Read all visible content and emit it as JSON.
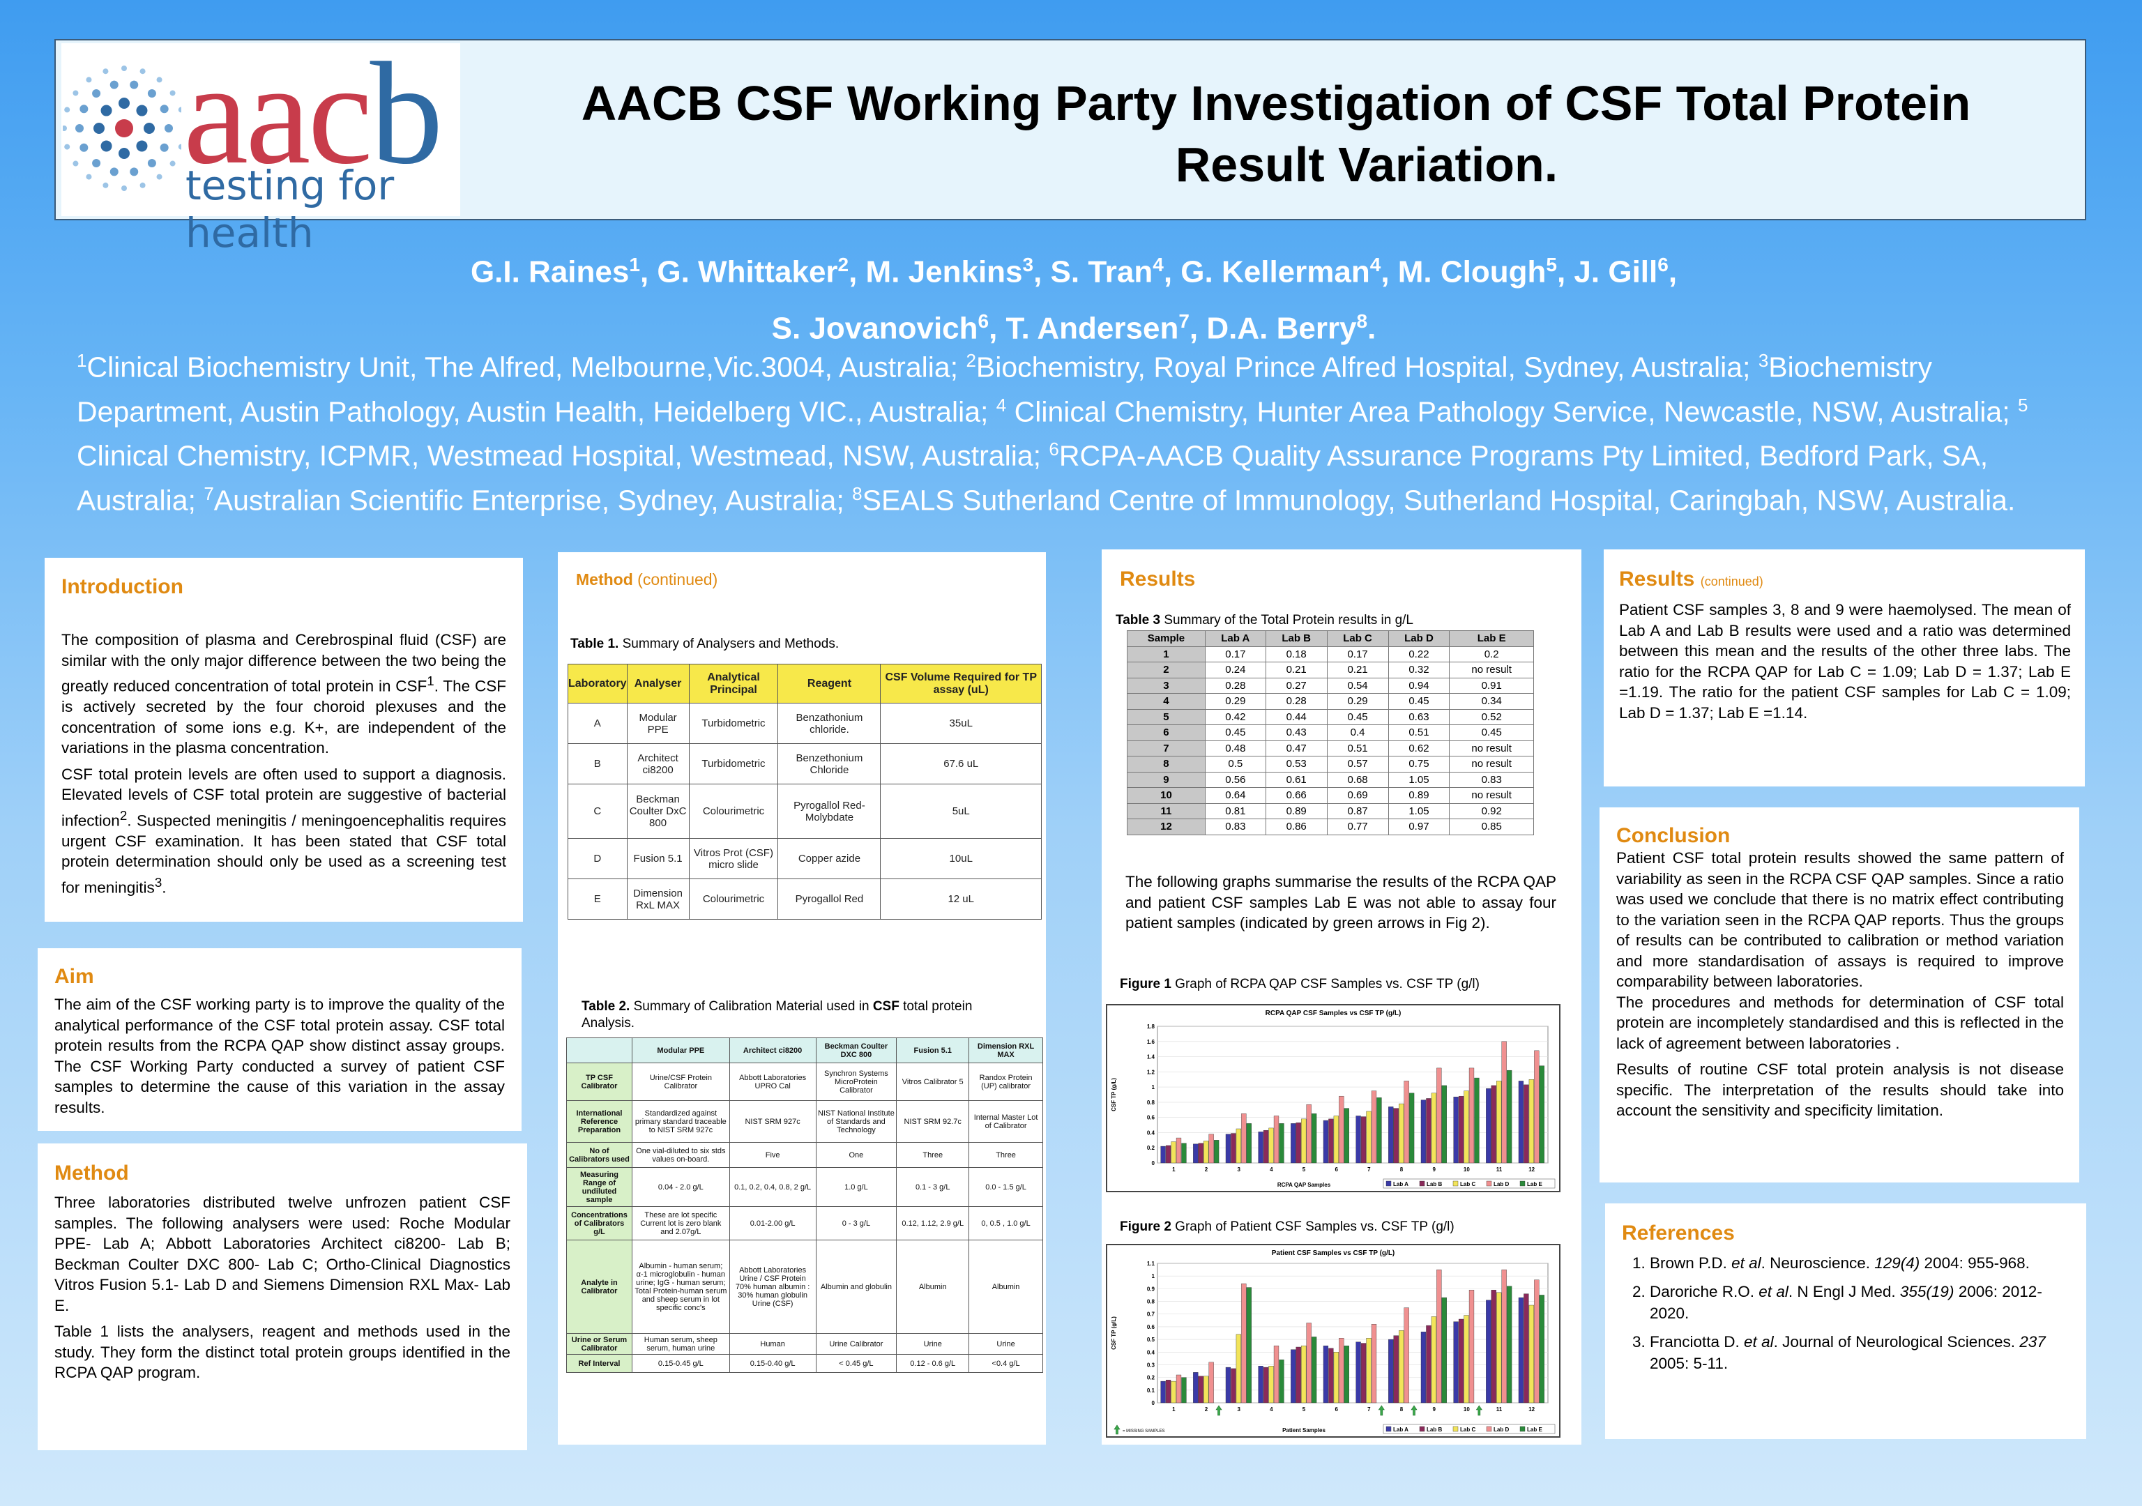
{
  "header": {
    "logo_text_a": "aac",
    "logo_text_b": "b",
    "logo_tagline": "testing for health",
    "title_line1": "AACB CSF Working Party Investigation of CSF Total Protein",
    "title_line2": "Result Variation."
  },
  "authors_html": "G.I. Raines<sup>1</sup>, G. Whittaker<sup>2</sup>, M. Jenkins<sup>3</sup>, S. Tran<sup>4</sup>, G. Kellerman<sup>4</sup>, M. Clough<sup>5</sup>, J. Gill<sup>6</sup>,<br>S. Jovanovich<sup>6</sup>, T. Andersen<sup>7</sup>, D.A. Berry<sup>8</sup>.",
  "affiliations_html": "<sup>1</sup>Clinical Biochemistry Unit, The Alfred, Melbourne,Vic.3004, Australia; <sup>2</sup>Biochemistry, Royal Prince Alfred Hospital, Sydney, Australia; <sup>3</sup>Biochemistry Department, Austin Pathology, Austin Health, Heidelberg VIC., Australia; <sup>4</sup> Clinical Chemistry, Hunter Area Pathology Service, Newcastle, NSW, Australia; <sup>5</sup> Clinical Chemistry, ICPMR, Westmead Hospital, Westmead, NSW, Australia; <sup>6</sup>RCPA-AACB Quality Assurance Programs Pty Limited, Bedford Park, SA, Australia; <sup>7</sup>Australian Scientific Enterprise, Sydney, Australia; <sup>8</sup>SEALS Sutherland Centre of Immunology, Sutherland Hospital, Caringbah, NSW, Australia.",
  "introduction": {
    "heading": "Introduction",
    "p1_html": "The composition of plasma and Cerebrospinal fluid (CSF) are similar with the only major difference between the two being the greatly reduced concentration of total protein in CSF<sup>1</sup>. The CSF is actively secreted by the four choroid plexuses and the concentration of some ions e.g. K+, are independent of the variations in the plasma concentration.",
    "p2_html": "CSF total protein levels are often used to support a diagnosis. Elevated levels of CSF total protein are suggestive of bacterial infection<sup>2</sup>. Suspected meningitis / meningoencephalitis requires urgent CSF examination. It has been stated that CSF total protein determination should only be used as a screening test for meningitis<sup>3</sup>."
  },
  "aim": {
    "heading": "Aim",
    "text": "The aim of the CSF  working party is to improve the quality of the analytical performance of the CSF total protein assay. CSF total protein results from the RCPA QAP show distinct assay groups. The CSF Working Party conducted a survey of patient CSF samples to determine the cause of this variation in the assay results."
  },
  "method": {
    "heading": "Method",
    "p1": "Three laboratories distributed twelve unfrozen patient CSF samples. The following analysers were used: Roche Modular PPE- Lab A; Abbott Laboratories Architect ci8200- Lab B; Beckman Coulter DXC 800- Lab C; Ortho-Clinical Diagnostics Vitros Fusion 5.1- Lab D and Siemens Dimension RXL Max- Lab E.",
    "p2": "Table 1 lists the analysers, reagent and methods used in the study. They form the distinct total protein groups identified in the RCPA QAP program."
  },
  "method_cont": {
    "heading": "Method",
    "heading_sub": "(continued)",
    "table1_caption_bold": "Table 1.",
    "table1_caption": "  Summary of Analysers and  Methods.",
    "table1": {
      "headers": [
        "Laboratory",
        "Analyser",
        "Analytical Principal",
        "Reagent",
        "CSF Volume Required for TP assay (uL)"
      ],
      "rows": [
        [
          "A",
          "Modular PPE",
          "Turbidometric",
          "Benzathonium chloride.",
          "35uL"
        ],
        [
          "B",
          "Architect ci8200",
          "Turbidometric",
          "Benzethonium Chloride",
          "67.6 uL"
        ],
        [
          "C",
          "Beckman Coulter DxC 800",
          "Colourimetric",
          "Pyrogallol Red-Molybdate",
          "5uL"
        ],
        [
          "D",
          "Fusion 5.1",
          "Vitros Prot (CSF) micro slide",
          "Copper azide",
          "10uL"
        ],
        [
          "E",
          "Dimension RxL MAX",
          "Colourimetric",
          "Pyrogallol Red",
          "12 uL"
        ]
      ]
    },
    "table2_caption_bold": "Table 2.",
    "table2_caption_pre": "  Summary of Calibration Material used in ",
    "table2_caption_csf": "CSF",
    "table2_caption_post": " total protein Analysis.",
    "table2": {
      "headers": [
        "",
        "Modular PPE",
        "Architect ci8200",
        "Beckman Coulter DXC 800",
        "Fusion 5.1",
        "Dimension RXL MAX"
      ],
      "rows": [
        [
          "TP CSF Calibrator",
          "Urine/CSF Protein Calibrator",
          "Abbott Laboratories UPRO Cal",
          "Synchron Systems MicroProtein Calibrator",
          "Vitros Calibrator 5",
          "Randox Protein (UP) calibrator"
        ],
        [
          "International Reference Preparation",
          "Standardized against primary standard traceable to NIST SRM 927c",
          "NIST SRM 927c",
          "NIST National Institute of Standards and Technology",
          "NIST SRM 92.7c",
          "Internal Master Lot of Calibrator"
        ],
        [
          "No of Calibrators used",
          "One vial-diluted to six stds values on-board.",
          "Five",
          "One",
          "Three",
          "Three"
        ],
        [
          "Measuring Range of undiluted sample",
          "0.04 - 2.0 g/L",
          "0.1, 0.2, 0.4, 0.8, 2 g/L",
          "1.0 g/L",
          "0.1 - 3 g/L",
          "0.0 - 1.5 g/L"
        ],
        [
          "Concentrations of Calibrators g/L",
          "These are lot specific Current lot is zero blank and 2.07g/L",
          "0.01-2.00 g/L",
          "0 - 3 g/L",
          "0.12, 1.12, 2.9 g/L",
          "0,  0.5 , 1.0 g/L"
        ],
        [
          "Analyte in Calibrator",
          "Albumin - human serum; α-1 microglobulin - human urine; IgG - human serum; Total Protein-human serum and sheep serum in lot specific conc's",
          "Abbott Laboratories Urine / CSF Protein 70% human albumin : 30% human globulin Urine (CSF)",
          "Albumin and globulin",
          "Albumin",
          "Albumin"
        ],
        [
          "Urine or Serum Calibrator",
          "Human serum, sheep serum, human urine",
          "Human",
          "Urine Calibrator",
          "Urine",
          "Urine"
        ],
        [
          "Ref Interval",
          "0.15-0.45 g/L",
          "0.15-0.40 g/L",
          "< 0.45 g/L",
          "0.12 -  0.6 g/L",
          "<0.4 g/L"
        ]
      ]
    }
  },
  "results": {
    "heading": "Results",
    "table3_caption_bold": "Table 3",
    "table3_caption": " Summary of the Total Protein results in g/L",
    "table3": {
      "headers": [
        "Sample",
        "Lab A",
        "Lab B",
        "Lab C",
        "Lab D",
        "Lab E"
      ],
      "rows": [
        [
          "1",
          "0.17",
          "0.18",
          "0.17",
          "0.22",
          "0.2"
        ],
        [
          "2",
          "0.24",
          "0.21",
          "0.21",
          "0.32",
          "no result"
        ],
        [
          "3",
          "0.28",
          "0.27",
          "0.54",
          "0.94",
          "0.91"
        ],
        [
          "4",
          "0.29",
          "0.28",
          "0.29",
          "0.45",
          "0.34"
        ],
        [
          "5",
          "0.42",
          "0.44",
          "0.45",
          "0.63",
          "0.52"
        ],
        [
          "6",
          "0.45",
          "0.43",
          "0.4",
          "0.51",
          "0.45"
        ],
        [
          "7",
          "0.48",
          "0.47",
          "0.51",
          "0.62",
          "no result"
        ],
        [
          "8",
          "0.5",
          "0.53",
          "0.57",
          "0.75",
          "no result"
        ],
        [
          "9",
          "0.56",
          "0.61",
          "0.68",
          "1.05",
          "0.83"
        ],
        [
          "10",
          "0.64",
          "0.66",
          "0.69",
          "0.89",
          "no result"
        ],
        [
          "11",
          "0.81",
          "0.89",
          "0.87",
          "1.05",
          "0.92"
        ],
        [
          "12",
          "0.83",
          "0.86",
          "0.77",
          "0.97",
          "0.85"
        ]
      ]
    },
    "summary": "The following graphs summarise the results of the RCPA QAP and patient CSF samples Lab E was not able to assay four patient samples (indicated by green arrows in Fig 2).",
    "fig1_caption_bold": "Figure 1",
    "fig1_caption": " Graph of RCPA QAP CSF Samples vs. CSF  TP (g/l)",
    "fig2_caption_bold": "Figure 2",
    "fig2_caption": " Graph of Patient CSF Samples vs. CSF  TP (g/l)"
  },
  "results_cont": {
    "heading": "Results",
    "heading_sub": "(continued)",
    "text": "Patient CSF samples 3, 8 and 9 were haemolysed. The mean of Lab A and Lab B results were used and a ratio was determined between this mean and the results of the other three labs. The ratio for the RCPA QAP for Lab C = 1.09; Lab D = 1.37; Lab E =1.19. The ratio for the patient CSF samples for Lab C = 1.09; Lab D = 1.37; Lab E =1.14."
  },
  "conclusion": {
    "heading": "Conclusion",
    "p1": "Patient CSF total protein results showed the same pattern of variability as seen in the RCPA CSF QAP samples. Since a ratio was used we conclude that there is no matrix effect contributing to the variation seen in the RCPA QAP reports. Thus the groups of results can be contributed to calibration or method variation and more standardisation of assays is required to improve comparability between laboratories.",
    "p2": "The procedures and methods for determination of  CSF total protein are incompletely standardised and this is reflected in the lack of agreement between laboratories .",
    "p3": "Results of routine CSF total protein analysis is not disease specific. The interpretation of the results should take into account the sensitivity and specificity limitation."
  },
  "references": {
    "heading": "References",
    "items_html": [
      "Brown P.D. <i>et al</i>. Neuroscience. <i>129(4)</i> 2004: 955-968.",
      "Daroriche R.O. <i>et al</i>. N Engl J Med. <i>355(19)</i> 2006: 2012-2020.",
      "Franciotta D. <i>et al</i>. Journal of Neurological Sciences. <i>237</i> 2005: 5-11."
    ]
  },
  "colors": {
    "lab_a": "#3a3aa8",
    "lab_b": "#8a2a5a",
    "lab_c": "#f2e45a",
    "lab_d": "#f09090",
    "lab_e": "#2a8a3a"
  },
  "chart_data": [
    {
      "type": "bar",
      "title": "RCPA QAP CSF Samples vs CSF TP (g/L)",
      "xlabel": "RCPA QAP Samples",
      "ylabel": "CSF TP (g/L)",
      "ylim": [
        0,
        1.8
      ],
      "yticks": [
        "0",
        "0.2",
        "0.4",
        "0.6",
        "0.8",
        "1",
        "1.2",
        "1.4",
        "1.6",
        "1.8"
      ],
      "categories": [
        "1",
        "2",
        "3",
        "4",
        "5",
        "6",
        "7",
        "8",
        "9",
        "10",
        "11",
        "12"
      ],
      "series": [
        {
          "name": "Lab A",
          "values": [
            0.22,
            0.25,
            0.38,
            0.41,
            0.52,
            0.56,
            0.62,
            0.74,
            0.83,
            0.87,
            0.98,
            1.08
          ]
        },
        {
          "name": "Lab B",
          "values": [
            0.23,
            0.26,
            0.39,
            0.43,
            0.53,
            0.58,
            0.61,
            0.72,
            0.85,
            0.88,
            1.02,
            1.03
          ]
        },
        {
          "name": "Lab C",
          "values": [
            0.28,
            0.29,
            0.45,
            0.46,
            0.58,
            0.62,
            0.68,
            0.78,
            0.92,
            0.95,
            1.08,
            1.1
          ]
        },
        {
          "name": "Lab D",
          "values": [
            0.33,
            0.38,
            0.65,
            0.62,
            0.77,
            0.88,
            0.95,
            1.08,
            1.25,
            1.25,
            1.6,
            1.48
          ]
        },
        {
          "name": "Lab E",
          "values": [
            0.26,
            0.3,
            0.52,
            0.52,
            0.65,
            0.72,
            0.86,
            0.92,
            1.02,
            1.12,
            1.22,
            1.28
          ]
        }
      ],
      "legend": "bottom-right"
    },
    {
      "type": "bar",
      "title": "Patient CSF Samples vs CSF TP (g/L)",
      "xlabel": "Patient Samples",
      "ylabel": "CSF TP (g/L)",
      "ylim": [
        0,
        1.1
      ],
      "yticks": [
        "0",
        "0.1",
        "0.2",
        "0.3",
        "0.4",
        "0.5",
        "0.6",
        "0.7",
        "0.8",
        "0.9",
        "1",
        "1.1"
      ],
      "categories": [
        "1",
        "2",
        "3",
        "4",
        "5",
        "6",
        "7",
        "8",
        "9",
        "10",
        "11",
        "12"
      ],
      "series": [
        {
          "name": "Lab A",
          "values": [
            0.17,
            0.24,
            0.28,
            0.29,
            0.42,
            0.45,
            0.48,
            0.5,
            0.56,
            0.64,
            0.81,
            0.83
          ]
        },
        {
          "name": "Lab B",
          "values": [
            0.18,
            0.21,
            0.27,
            0.28,
            0.44,
            0.43,
            0.47,
            0.53,
            0.61,
            0.66,
            0.89,
            0.86
          ]
        },
        {
          "name": "Lab C",
          "values": [
            0.17,
            0.21,
            0.54,
            0.29,
            0.45,
            0.4,
            0.51,
            0.57,
            0.68,
            0.69,
            0.87,
            0.77
          ]
        },
        {
          "name": "Lab D",
          "values": [
            0.22,
            0.32,
            0.94,
            0.45,
            0.63,
            0.51,
            0.62,
            0.75,
            1.05,
            0.89,
            1.05,
            0.97
          ]
        },
        {
          "name": "Lab E",
          "values": [
            0.2,
            null,
            0.91,
            0.34,
            0.52,
            0.45,
            null,
            null,
            0.83,
            null,
            0.92,
            0.85
          ]
        }
      ],
      "missing_samples": [
        "2",
        "7",
        "8",
        "10"
      ],
      "missing_label": "= MISSING SAMPLES",
      "legend": "bottom-right"
    }
  ]
}
